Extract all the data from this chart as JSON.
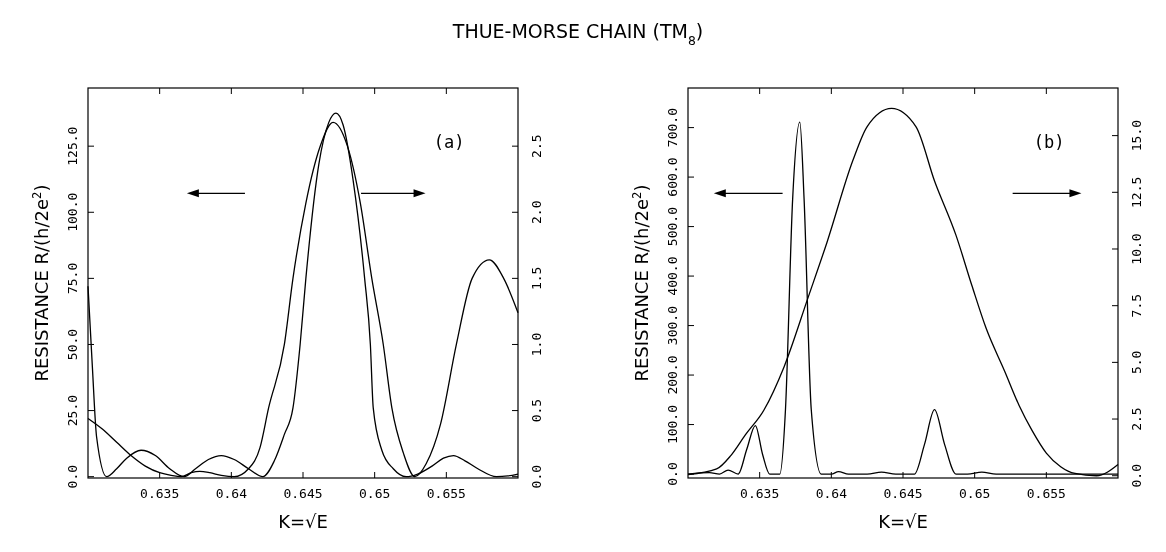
{
  "chart_data": [
    {
      "type": "line",
      "title": "THUE-MORSE CHAIN (TM$_{8}$)",
      "xlabel": "K=√E",
      "ylabel": "RESISTANCE   R/(h/2e$^{2}$)",
      "xlim": [
        0.63,
        0.66
      ],
      "xticks": [
        0.635,
        0.64,
        0.645,
        0.65,
        0.655
      ],
      "ylim": [
        -0.5,
        147
      ],
      "yticks": [
        {
          "value": 0,
          "label": "0.0"
        },
        {
          "value": 25,
          "label": "25.0"
        },
        {
          "value": 50,
          "label": "50.0"
        },
        {
          "value": 75,
          "label": "75.0"
        },
        {
          "value": 100,
          "label": "100.0"
        },
        {
          "value": 125,
          "label": "125.0"
        }
      ],
      "y2lim": [
        -0.01,
        2.94
      ],
      "y2ticks": [
        {
          "value": 0,
          "label": "0.0"
        },
        {
          "value": 0.5,
          "label": "0.5"
        },
        {
          "value": 1,
          "label": "1.0"
        },
        {
          "value": 1.5,
          "label": "1.5"
        },
        {
          "value": 2,
          "label": "2.0"
        },
        {
          "value": 2.5,
          "label": "2.5"
        }
      ],
      "annotations": [
        "(a)"
      ],
      "series": [
        {
          "color": "#000000",
          "x": [
            0.63,
            0.6303,
            0.6306,
            0.6313,
            0.632,
            0.6327,
            0.6337,
            0.6347,
            0.6357,
            0.6367,
            0.6375,
            0.6384,
            0.6393,
            0.6402,
            0.6412,
            0.6422,
            0.643,
            0.6437,
            0.6443,
            0.6448,
            0.6452,
            0.6461,
            0.6468,
            0.6473,
            0.6478,
            0.6485,
            0.6493,
            0.6497,
            0.6499,
            0.6505,
            0.6513,
            0.6522,
            0.653,
            0.654,
            0.6548,
            0.6555,
            0.6563,
            0.6572,
            0.6585,
            0.6593,
            0.66
          ],
          "values": [
            72,
            42,
            15,
            0,
            3,
            7,
            10,
            8,
            3,
            0,
            3,
            6.5,
            8,
            6.5,
            3,
            0,
            6,
            16,
            26,
            50,
            75,
            118,
            134,
            137.5,
            133,
            112,
            75,
            50,
            26,
            10,
            3,
            0,
            1,
            4,
            7,
            8,
            6,
            3,
            0,
            0.3,
            1
          ]
        },
        {
          "color": "#000000",
          "axis": "y2",
          "x": [
            0.63,
            0.631,
            0.632,
            0.633,
            0.634,
            0.635,
            0.6358,
            0.6365,
            0.6372,
            0.6378,
            0.6385,
            0.6393,
            0.6402,
            0.6412,
            0.642,
            0.6426,
            0.6437,
            0.6443,
            0.6452,
            0.6462,
            0.6471,
            0.6481,
            0.649,
            0.6498,
            0.6506,
            0.6512,
            0.652,
            0.6528,
            0.6536,
            0.6546,
            0.6557,
            0.6568,
            0.658,
            0.659,
            0.66
          ],
          "values": [
            0.44,
            0.36,
            0.26,
            0.16,
            0.08,
            0.03,
            0.01,
            0,
            0.03,
            0.04,
            0.03,
            0.01,
            0,
            0.06,
            0.22,
            0.52,
            1.0,
            1.5,
            2.07,
            2.5,
            2.68,
            2.5,
            2.07,
            1.5,
            1.0,
            0.52,
            0.18,
            0,
            0.1,
            0.4,
            1.0,
            1.5,
            1.64,
            1.5,
            1.24
          ]
        }
      ]
    },
    {
      "type": "line",
      "xlabel": "K=√E",
      "ylabel": "RESISTANCE   R/(h/2e$^{2}$)",
      "xlim": [
        0.63,
        0.66
      ],
      "xticks": [
        0.635,
        0.64,
        0.645,
        0.65,
        0.655
      ],
      "ylim": [
        -8,
        780
      ],
      "yticks": [
        {
          "value": 0,
          "label": "0.0"
        },
        {
          "value": 100,
          "label": "100.0"
        },
        {
          "value": 200,
          "label": "200.0"
        },
        {
          "value": 300,
          "label": "300.0"
        },
        {
          "value": 400,
          "label": "400.0"
        },
        {
          "value": 500,
          "label": "500.0"
        },
        {
          "value": 600,
          "label": "600.0"
        },
        {
          "value": 700,
          "label": "700.0"
        }
      ],
      "y2lim": [
        -0.1,
        17.1
      ],
      "y2ticks": [
        {
          "value": 0,
          "label": "0.0"
        },
        {
          "value": 2.5,
          "label": "2.5"
        },
        {
          "value": 5,
          "label": "5.0"
        },
        {
          "value": 7.5,
          "label": "7.5"
        },
        {
          "value": 10,
          "label": "10.0"
        },
        {
          "value": 12.5,
          "label": "12.5"
        },
        {
          "value": 15,
          "label": "15.0"
        }
      ],
      "annotations": [
        "(b)"
      ],
      "series": [
        {
          "color": "#000000",
          "x": [
            0.63,
            0.6315,
            0.6322,
            0.6328,
            0.6335,
            0.6341,
            0.6347,
            0.6352,
            0.6357,
            0.6364,
            0.6368,
            0.6373,
            0.6378,
            0.6381,
            0.6386,
            0.6393,
            0.64,
            0.6405,
            0.6412,
            0.6425,
            0.6435,
            0.6445,
            0.6458,
            0.6465,
            0.6472,
            0.6479,
            0.6487,
            0.6495,
            0.6505,
            0.6515,
            0.66
          ],
          "values": [
            0,
            3,
            0,
            8,
            0,
            50,
            98,
            40,
            0,
            0,
            130,
            555,
            711,
            555,
            130,
            0,
            0,
            5,
            0,
            0,
            4,
            0,
            0,
            60,
            130,
            60,
            0,
            0,
            4,
            0,
            0
          ]
        },
        {
          "color": "#000000",
          "axis": "y2",
          "x": [
            0.63,
            0.632,
            0.633,
            0.634,
            0.6353,
            0.6367,
            0.6384,
            0.6397,
            0.6415,
            0.6425,
            0.6442,
            0.6459,
            0.6472,
            0.6487,
            0.6498,
            0.6508,
            0.6521,
            0.6531,
            0.654,
            0.655,
            0.656,
            0.657,
            0.6585,
            0.66
          ],
          "values": [
            0.05,
            0.3,
            0.9,
            1.8,
            2.9,
            4.8,
            7.9,
            10.3,
            13.9,
            15.4,
            16.2,
            15.4,
            13.0,
            10.6,
            8.4,
            6.5,
            4.6,
            3.1,
            2.0,
            1.0,
            0.4,
            0.1,
            0,
            0.5
          ]
        }
      ]
    }
  ]
}
